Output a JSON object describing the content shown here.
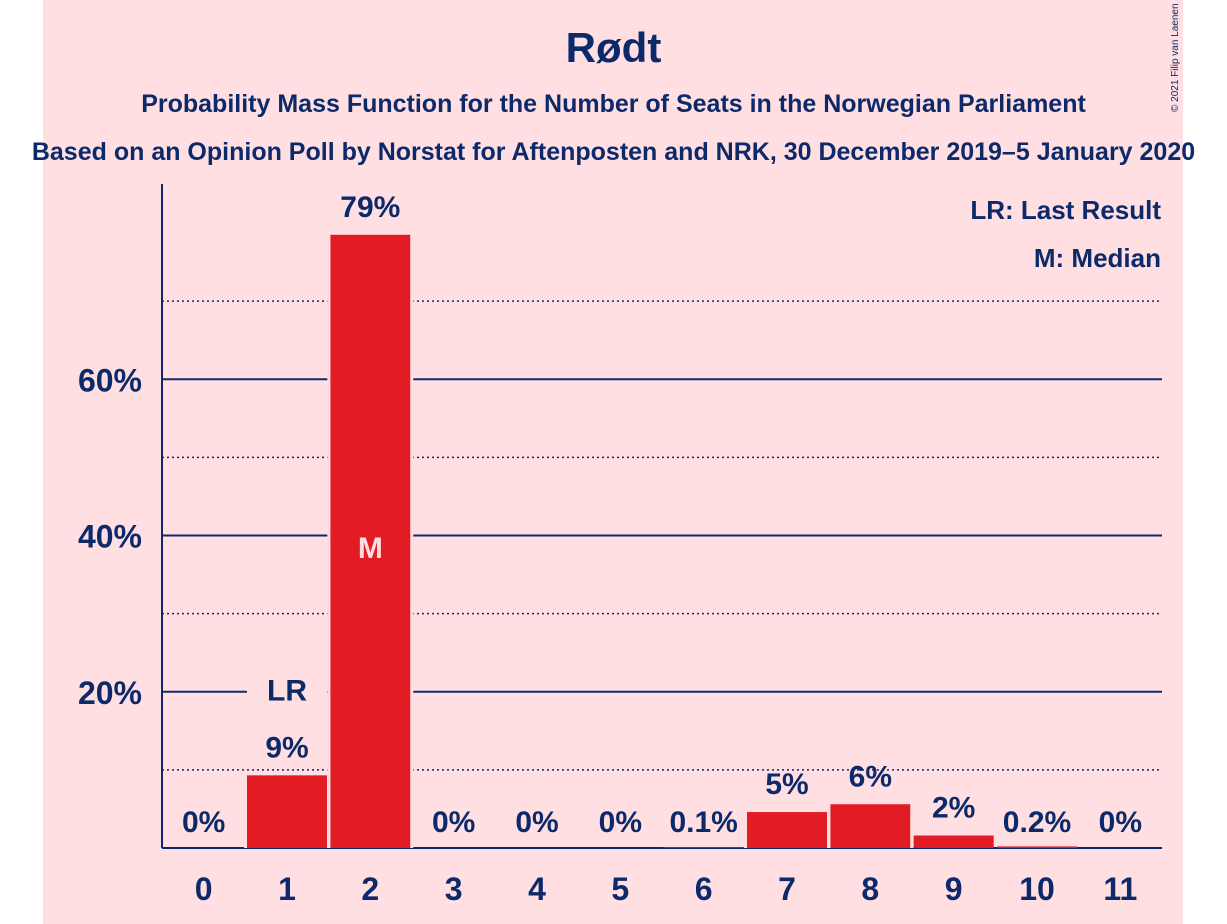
{
  "colors": {
    "background": "#ffdfe2",
    "bar": "#e31b23",
    "text": "#0c2a6a",
    "bar_label_inside": "#ffdfe2"
  },
  "chart_data": {
    "type": "bar",
    "title": "Rødt",
    "subtitle": "Probability Mass Function for the Number of Seats in the Norwegian Parliament",
    "subtitle2": "Based on an Opinion Poll by Norstat for Aftenposten and NRK, 30 December 2019–5 January 2020",
    "categories": [
      "0",
      "1",
      "2",
      "3",
      "4",
      "5",
      "6",
      "7",
      "8",
      "9",
      "10",
      "11"
    ],
    "values": [
      0,
      9.3,
      78.5,
      0,
      0,
      0,
      0.1,
      4.6,
      5.6,
      1.6,
      0.2,
      0
    ],
    "data_labels": [
      "0%",
      "9%",
      "79%",
      "0%",
      "0%",
      "0%",
      "0.1%",
      "5%",
      "6%",
      "2%",
      "0.2%",
      "0%"
    ],
    "ylim": [
      0,
      85
    ],
    "yticks": [
      20,
      40,
      60
    ],
    "ytick_labels": [
      "20%",
      "40%",
      "60%"
    ],
    "dotted_gridlines": [
      10,
      30,
      50,
      70
    ],
    "last_result_index": 1,
    "last_result_marker": "LR",
    "median_index": 2,
    "median_marker": "M",
    "legend": [
      "LR: Last Result",
      "M: Median"
    ],
    "copyright": "© 2021 Filip van Laenen"
  }
}
